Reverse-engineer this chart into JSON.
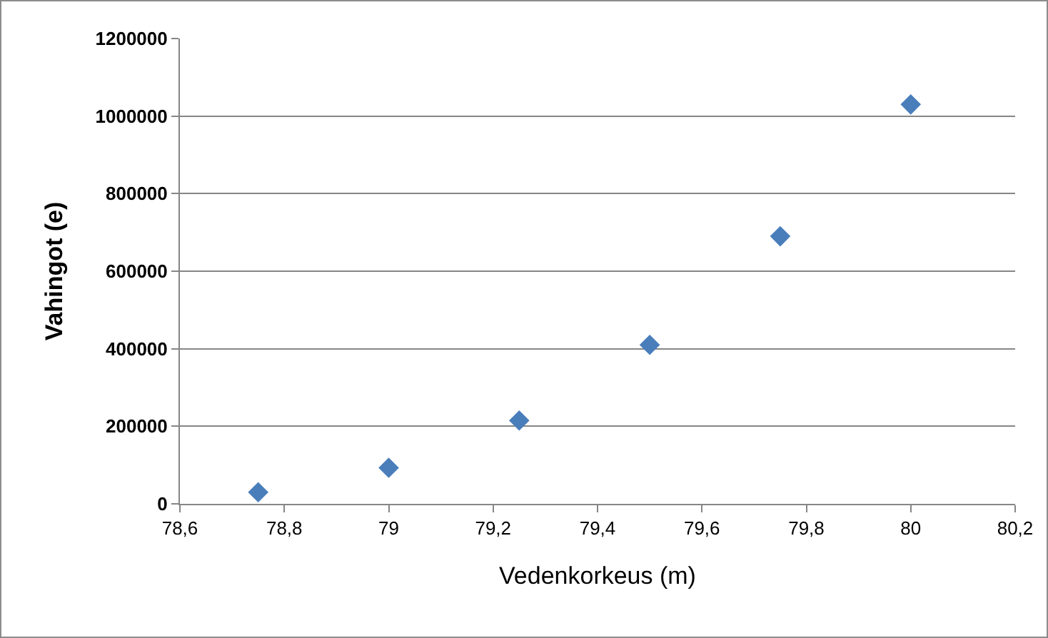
{
  "chart_data": {
    "type": "scatter",
    "xlabel": "Vedenkorkeus (m)",
    "ylabel": "Vahingot (e)",
    "x": [
      78.75,
      79,
      79.25,
      79.5,
      79.75,
      80
    ],
    "series": [
      {
        "color": "#4a7ebb",
        "values": [
          30000,
          93000,
          215000,
          410000,
          690000,
          1030000
        ]
      }
    ],
    "xlim": [
      78.6,
      80.2
    ],
    "xticks": [
      {
        "value": 78.6,
        "label": "78,6"
      },
      {
        "value": 78.8,
        "label": "78,8"
      },
      79,
      {
        "value": 79.2,
        "label": "79,2"
      },
      {
        "value": 79.4,
        "label": "79,4"
      },
      {
        "value": 79.6,
        "label": "79,6"
      },
      {
        "value": 79.8,
        "label": "79,8"
      },
      80,
      {
        "value": 80.2,
        "label": "80,2"
      }
    ],
    "ylim": [
      0,
      1200000
    ],
    "yticks": [
      0,
      200000,
      400000,
      600000,
      800000,
      1000000,
      1200000
    ],
    "grid": "y",
    "marker": "diamond",
    "legend": false
  }
}
